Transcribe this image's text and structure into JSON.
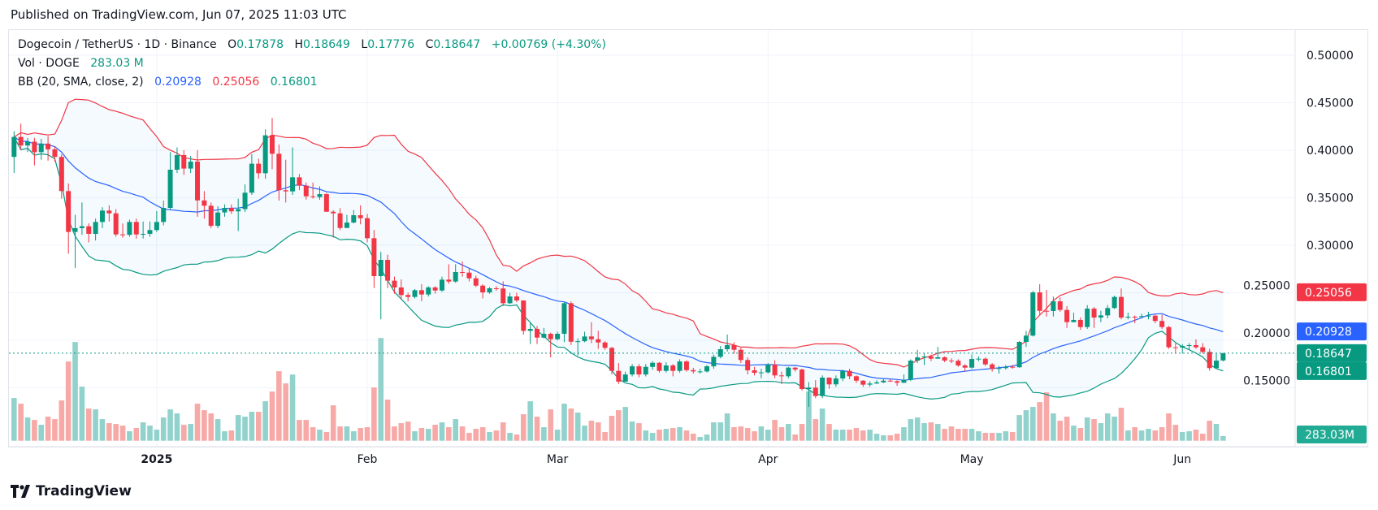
{
  "published": "Published on TradingView.com, Jun 07, 2025 11:03 UTC",
  "legend": {
    "symbol": "Dogecoin / TetherUS · 1D · Binance",
    "o_label": "O",
    "o": "0.17878",
    "h_label": "H",
    "h": "0.18649",
    "l_label": "L",
    "l": "0.17776",
    "c_label": "C",
    "c": "0.18647",
    "change": "+0.00769 (+4.30%)",
    "vol_label": "Vol · DOGE",
    "vol": "283.03 M",
    "bb_label": "BB (20, SMA, close, 2)",
    "bb_basis": "0.20928",
    "bb_upper": "0.25056",
    "bb_lower": "0.16801"
  },
  "logo": "TradingView",
  "colors": {
    "up": "#089981",
    "down": "#f23645",
    "basis": "#2962ff",
    "upper": "#f23645",
    "lower": "#089981"
  },
  "chart_data": {
    "type": "candlestick",
    "interval": "1D",
    "first_date": "2024-12-11",
    "last_date": "2025-06-07",
    "ylim": [
      0.12,
      0.52
    ],
    "y_ticks": [
      "0.50000",
      "0.45000",
      "0.40000",
      "0.35000",
      "0.30000",
      "0.25000",
      "0.20000",
      "0.15000"
    ],
    "x_ticks": [
      {
        "label": "2025",
        "date": "2025-01-01"
      },
      {
        "label": "Feb",
        "date": "2025-02-01"
      },
      {
        "label": "Mar",
        "date": "2025-03-01"
      },
      {
        "label": "Apr",
        "date": "2025-04-01"
      },
      {
        "label": "May",
        "date": "2025-05-01"
      },
      {
        "label": "Jun",
        "date": "2025-06-01"
      }
    ],
    "price_tags": {
      "upper": "0.25056",
      "basis": "0.20928",
      "last": "0.18647",
      "lower": "0.16801",
      "volume": "283.03M"
    },
    "last_close": 0.18647,
    "bb": {
      "length": 20,
      "mult": 2,
      "source": "close",
      "ma": "SMA"
    },
    "grid": true,
    "ohlc": [
      [
        0.393,
        0.42,
        0.376,
        0.414
      ],
      [
        0.414,
        0.428,
        0.4,
        0.405
      ],
      [
        0.405,
        0.413,
        0.398,
        0.409
      ],
      [
        0.409,
        0.413,
        0.384,
        0.398
      ],
      [
        0.398,
        0.412,
        0.39,
        0.407
      ],
      [
        0.407,
        0.415,
        0.389,
        0.401
      ],
      [
        0.401,
        0.404,
        0.388,
        0.393
      ],
      [
        0.393,
        0.396,
        0.349,
        0.357
      ],
      [
        0.357,
        0.365,
        0.291,
        0.314
      ],
      [
        0.314,
        0.332,
        0.276,
        0.318
      ],
      [
        0.318,
        0.345,
        0.311,
        0.32
      ],
      [
        0.32,
        0.323,
        0.303,
        0.312
      ],
      [
        0.312,
        0.328,
        0.305,
        0.3245
      ],
      [
        0.3245,
        0.34,
        0.318,
        0.3365
      ],
      [
        0.3365,
        0.342,
        0.325,
        0.3336
      ],
      [
        0.3336,
        0.338,
        0.309,
        0.3114
      ],
      [
        0.3114,
        0.323,
        0.308,
        0.311
      ],
      [
        0.311,
        0.327,
        0.309,
        0.3245
      ],
      [
        0.3245,
        0.328,
        0.307,
        0.3114
      ],
      [
        0.3114,
        0.325,
        0.307,
        0.312
      ],
      [
        0.312,
        0.325,
        0.309,
        0.316
      ],
      [
        0.316,
        0.336,
        0.314,
        0.3245
      ],
      [
        0.3245,
        0.347,
        0.321,
        0.3393
      ],
      [
        0.3393,
        0.398,
        0.337,
        0.3795
      ],
      [
        0.3795,
        0.403,
        0.376,
        0.3949
      ],
      [
        0.3949,
        0.4,
        0.374,
        0.3807
      ],
      [
        0.3807,
        0.394,
        0.376,
        0.388
      ],
      [
        0.388,
        0.4,
        0.33,
        0.3472
      ],
      [
        0.3472,
        0.357,
        0.328,
        0.3416
      ],
      [
        0.3416,
        0.345,
        0.318,
        0.3204
      ],
      [
        0.3204,
        0.341,
        0.318,
        0.3345
      ],
      [
        0.3345,
        0.343,
        0.33,
        0.3393
      ],
      [
        0.3393,
        0.343,
        0.333,
        0.3357
      ],
      [
        0.3357,
        0.349,
        0.315,
        0.338
      ],
      [
        0.338,
        0.364,
        0.335,
        0.3553
      ],
      [
        0.3553,
        0.396,
        0.353,
        0.3858
      ],
      [
        0.3858,
        0.391,
        0.37,
        0.3758
      ],
      [
        0.3758,
        0.422,
        0.37,
        0.4157
      ],
      [
        0.4157,
        0.434,
        0.38,
        0.3963
      ],
      [
        0.3963,
        0.406,
        0.347,
        0.3579
      ],
      [
        0.3579,
        0.39,
        0.345,
        0.3567
      ],
      [
        0.3567,
        0.403,
        0.353,
        0.3715
      ],
      [
        0.3715,
        0.375,
        0.358,
        0.3627
      ],
      [
        0.3627,
        0.366,
        0.348,
        0.3515
      ],
      [
        0.3515,
        0.366,
        0.349,
        0.3507
      ],
      [
        0.3507,
        0.362,
        0.348,
        0.3538
      ],
      [
        0.3538,
        0.355,
        0.335,
        0.3353
      ],
      [
        0.3353,
        0.337,
        0.308,
        0.3336
      ],
      [
        0.3336,
        0.339,
        0.316,
        0.3182
      ],
      [
        0.3182,
        0.332,
        0.319,
        0.3239
      ],
      [
        0.3239,
        0.337,
        0.323,
        0.3316
      ],
      [
        0.3316,
        0.342,
        0.322,
        0.3285
      ],
      [
        0.3285,
        0.333,
        0.303,
        0.3074
      ],
      [
        0.3074,
        0.316,
        0.255,
        0.2675
      ],
      [
        0.2675,
        0.293,
        0.222,
        0.2846
      ],
      [
        0.2846,
        0.29,
        0.255,
        0.2627
      ],
      [
        0.2627,
        0.267,
        0.249,
        0.2556
      ],
      [
        0.2556,
        0.264,
        0.243,
        0.2476
      ],
      [
        0.2476,
        0.25,
        0.241,
        0.2456
      ],
      [
        0.2456,
        0.254,
        0.244,
        0.2527
      ],
      [
        0.2527,
        0.259,
        0.241,
        0.2482
      ],
      [
        0.2482,
        0.257,
        0.246,
        0.2556
      ],
      [
        0.2556,
        0.257,
        0.249,
        0.2524
      ],
      [
        0.2524,
        0.267,
        0.251,
        0.2638
      ],
      [
        0.2638,
        0.28,
        0.2595,
        0.2618
      ],
      [
        0.2618,
        0.28,
        0.2605,
        0.2718
      ],
      [
        0.2718,
        0.283,
        0.267,
        0.2712
      ],
      [
        0.2712,
        0.276,
        0.262,
        0.2652
      ],
      [
        0.2652,
        0.268,
        0.256,
        0.2575
      ],
      [
        0.2575,
        0.259,
        0.244,
        0.2504
      ],
      [
        0.2504,
        0.256,
        0.249,
        0.2547
      ],
      [
        0.2547,
        0.257,
        0.252,
        0.2545
      ],
      [
        0.2545,
        0.262,
        0.236,
        0.239
      ],
      [
        0.239,
        0.25,
        0.238,
        0.2461
      ],
      [
        0.2461,
        0.25,
        0.24,
        0.2419
      ],
      [
        0.2419,
        0.242,
        0.206,
        0.2099
      ],
      [
        0.2099,
        0.218,
        0.196,
        0.212
      ],
      [
        0.212,
        0.215,
        0.196,
        0.2028
      ],
      [
        0.2028,
        0.213,
        0.202,
        0.2068
      ],
      [
        0.2068,
        0.208,
        0.182,
        0.2011
      ],
      [
        0.2011,
        0.209,
        0.2,
        0.2068
      ],
      [
        0.2068,
        0.24,
        0.198,
        0.239
      ],
      [
        0.239,
        0.241,
        0.195,
        0.1985
      ],
      [
        0.1985,
        0.202,
        0.184,
        0.199
      ],
      [
        0.199,
        0.209,
        0.198,
        0.204
      ],
      [
        0.204,
        0.219,
        0.197,
        0.2011
      ],
      [
        0.2011,
        0.21,
        0.191,
        0.1977
      ],
      [
        0.1977,
        0.199,
        0.19,
        0.192
      ],
      [
        0.192,
        0.193,
        0.164,
        0.1678
      ],
      [
        0.1678,
        0.176,
        0.154,
        0.1564
      ],
      [
        0.1564,
        0.167,
        0.159,
        0.164
      ],
      [
        0.164,
        0.175,
        0.162,
        0.1726
      ],
      [
        0.1726,
        0.175,
        0.161,
        0.164
      ],
      [
        0.164,
        0.175,
        0.162,
        0.172
      ],
      [
        0.172,
        0.178,
        0.169,
        0.1763
      ],
      [
        0.1763,
        0.177,
        0.166,
        0.1678
      ],
      [
        0.1678,
        0.177,
        0.166,
        0.1735
      ],
      [
        0.1735,
        0.175,
        0.162,
        0.1678
      ],
      [
        0.1678,
        0.18,
        0.166,
        0.1777
      ],
      [
        0.1777,
        0.179,
        0.167,
        0.1686
      ],
      [
        0.1686,
        0.171,
        0.165,
        0.1672
      ],
      [
        0.1672,
        0.17,
        0.165,
        0.1672
      ],
      [
        0.1672,
        0.174,
        0.166,
        0.1726
      ],
      [
        0.1726,
        0.185,
        0.17,
        0.1826
      ],
      [
        0.1826,
        0.194,
        0.181,
        0.1906
      ],
      [
        0.1906,
        0.206,
        0.188,
        0.1949
      ],
      [
        0.1949,
        0.198,
        0.186,
        0.19
      ],
      [
        0.19,
        0.192,
        0.176,
        0.1792
      ],
      [
        0.1792,
        0.182,
        0.164,
        0.1684
      ],
      [
        0.1684,
        0.172,
        0.163,
        0.1658
      ],
      [
        0.1658,
        0.17,
        0.16,
        0.1662
      ],
      [
        0.1662,
        0.176,
        0.165,
        0.1744
      ],
      [
        0.1744,
        0.179,
        0.16,
        0.163
      ],
      [
        0.163,
        0.167,
        0.154,
        0.1621
      ],
      [
        0.1621,
        0.172,
        0.16,
        0.1712
      ],
      [
        0.1712,
        0.172,
        0.167,
        0.1692
      ],
      [
        0.1692,
        0.17,
        0.147,
        0.1487
      ],
      [
        0.1487,
        0.156,
        0.13,
        0.1502
      ],
      [
        0.1502,
        0.158,
        0.139,
        0.1413
      ],
      [
        0.1413,
        0.163,
        0.139,
        0.1607
      ],
      [
        0.1607,
        0.161,
        0.149,
        0.1536
      ],
      [
        0.1536,
        0.163,
        0.151,
        0.1598
      ],
      [
        0.1598,
        0.169,
        0.157,
        0.1678
      ],
      [
        0.1678,
        0.17,
        0.159,
        0.1621
      ],
      [
        0.1621,
        0.163,
        0.155,
        0.1575
      ],
      [
        0.1575,
        0.158,
        0.151,
        0.1533
      ],
      [
        0.1533,
        0.157,
        0.151,
        0.1545
      ],
      [
        0.1545,
        0.158,
        0.154,
        0.1557
      ],
      [
        0.1557,
        0.16,
        0.155,
        0.1575
      ],
      [
        0.1575,
        0.159,
        0.156,
        0.1569
      ],
      [
        0.1569,
        0.158,
        0.152,
        0.1553
      ],
      [
        0.1553,
        0.164,
        0.155,
        0.1584
      ],
      [
        0.1584,
        0.18,
        0.157,
        0.1786
      ],
      [
        0.1786,
        0.19,
        0.176,
        0.182
      ],
      [
        0.182,
        0.186,
        0.174,
        0.1829
      ],
      [
        0.1829,
        0.185,
        0.178,
        0.1806
      ],
      [
        0.1806,
        0.193,
        0.181,
        0.1821
      ],
      [
        0.1821,
        0.183,
        0.177,
        0.1786
      ],
      [
        0.1786,
        0.181,
        0.176,
        0.1784
      ],
      [
        0.1784,
        0.18,
        0.172,
        0.1735
      ],
      [
        0.1735,
        0.175,
        0.167,
        0.1712
      ],
      [
        0.1712,
        0.185,
        0.17,
        0.1803
      ],
      [
        0.1803,
        0.183,
        0.178,
        0.1806
      ],
      [
        0.1806,
        0.182,
        0.173,
        0.1746
      ],
      [
        0.1746,
        0.176,
        0.167,
        0.1698
      ],
      [
        0.1698,
        0.173,
        0.165,
        0.1707
      ],
      [
        0.1707,
        0.174,
        0.169,
        0.1721
      ],
      [
        0.1721,
        0.174,
        0.17,
        0.1716
      ],
      [
        0.1716,
        0.199,
        0.171,
        0.1983
      ],
      [
        0.1983,
        0.21,
        0.193,
        0.2049
      ],
      [
        0.2049,
        0.252,
        0.204,
        0.2504
      ],
      [
        0.2504,
        0.259,
        0.227,
        0.231
      ],
      [
        0.231,
        0.253,
        0.225,
        0.2308
      ],
      [
        0.2308,
        0.246,
        0.225,
        0.241
      ],
      [
        0.241,
        0.245,
        0.23,
        0.2319
      ],
      [
        0.2319,
        0.236,
        0.213,
        0.2191
      ],
      [
        0.2191,
        0.229,
        0.219,
        0.2214
      ],
      [
        0.2214,
        0.224,
        0.211,
        0.2139
      ],
      [
        0.2139,
        0.237,
        0.212,
        0.2333
      ],
      [
        0.2333,
        0.235,
        0.213,
        0.2239
      ],
      [
        0.2239,
        0.231,
        0.219,
        0.2262
      ],
      [
        0.2262,
        0.237,
        0.223,
        0.2339
      ],
      [
        0.2339,
        0.247,
        0.233,
        0.2456
      ],
      [
        0.2456,
        0.2545,
        0.222,
        0.2239
      ],
      [
        0.2239,
        0.229,
        0.222,
        0.2248
      ],
      [
        0.2248,
        0.226,
        0.218,
        0.2245
      ],
      [
        0.2245,
        0.228,
        0.223,
        0.2254
      ],
      [
        0.2254,
        0.23,
        0.222,
        0.2259
      ],
      [
        0.2259,
        0.227,
        0.218,
        0.2203
      ],
      [
        0.2203,
        0.227,
        0.212,
        0.2139
      ],
      [
        0.2139,
        0.215,
        0.191,
        0.1926
      ],
      [
        0.1926,
        0.197,
        0.186,
        0.1924
      ],
      [
        0.1924,
        0.196,
        0.186,
        0.194
      ],
      [
        0.194,
        0.197,
        0.19,
        0.1949
      ],
      [
        0.1949,
        0.201,
        0.191,
        0.1926
      ],
      [
        0.1926,
        0.197,
        0.186,
        0.1878
      ],
      [
        0.1878,
        0.191,
        0.168,
        0.1707
      ],
      [
        0.1707,
        0.186,
        0.172,
        0.1786
      ],
      [
        0.17878,
        0.18649,
        0.17776,
        0.18647
      ]
    ],
    "volume_millions": [
      2631,
      2281,
      1432,
      1282,
      982,
      1482,
      1332,
      2481,
      4878,
      6077,
      3330,
      1981,
      1931,
      1332,
      1082,
      1032,
      932,
      583,
      783,
      1132,
      932,
      683,
      1432,
      1931,
      1682,
      982,
      1032,
      2281,
      1881,
      1682,
      1332,
      583,
      633,
      1582,
      1482,
      1782,
      1782,
      2431,
      3030,
      4279,
      3530,
      4079,
      1282,
      1282,
      833,
      683,
      533,
      2181,
      882,
      882,
      583,
      783,
      833,
      3280,
      6327,
      2531,
      882,
      1082,
      1182,
      583,
      783,
      733,
      982,
      1132,
      833,
      1332,
      882,
      483,
      733,
      833,
      533,
      633,
      1132,
      483,
      383,
      1632,
      2431,
      1482,
      833,
      1931,
      683,
      2281,
      1981,
      1732,
      932,
      1232,
      1132,
      533,
      1532,
      1881,
      2081,
      1182,
      1082,
      633,
      483,
      683,
      733,
      783,
      833,
      633,
      433,
      233,
      383,
      1132,
      1132,
      1682,
      833,
      882,
      783,
      583,
      882,
      683,
      1282,
      833,
      1032,
      383,
      1032,
      3047,
      1332,
      1981,
      1032,
      683,
      683,
      683,
      783,
      633,
      683,
      433,
      333,
      333,
      433,
      833,
      1332,
      1432,
      1082,
      1132,
      1032,
      733,
      882,
      733,
      733,
      733,
      583,
      483,
      483,
      483,
      583,
      533,
      1582,
      1881,
      2081,
      2381,
      2980,
      1682,
      1232,
      1482,
      932,
      783,
      1432,
      1332,
      1082,
      1682,
      1482,
      2031,
      633,
      833,
      633,
      733,
      633,
      833,
      1682,
      982,
      533,
      583,
      683,
      433,
      1232,
      1032,
      283.03
    ]
  }
}
